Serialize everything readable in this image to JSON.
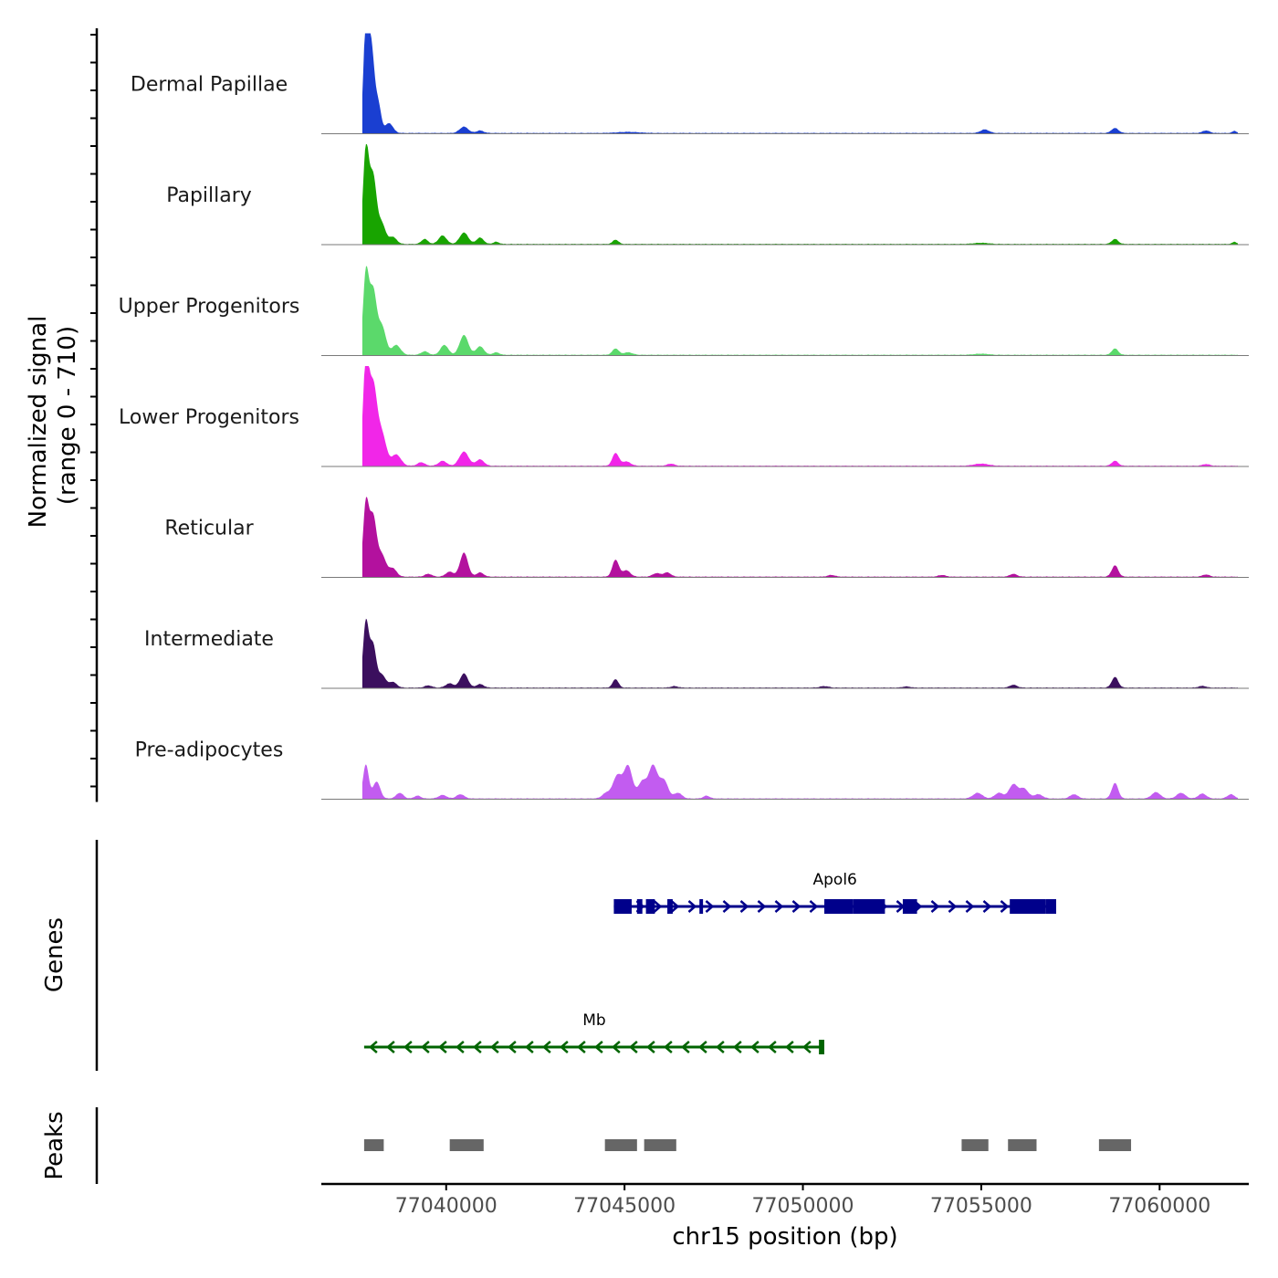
{
  "chart_data": {
    "type": "area",
    "title": "",
    "region": {
      "chrom": "chr15",
      "start": 77036500,
      "end": 77062500
    },
    "xlabel": "chr15 position (bp)",
    "ylabel": "Normalized signal",
    "ylabel_range": "(range 0 - 710)",
    "ylim": [
      0,
      710
    ],
    "x_ticks": [
      77040000,
      77045000,
      77050000,
      77055000,
      77060000
    ],
    "x_tick_labels": [
      "77040000",
      "77045000",
      "77050000",
      "77055000",
      "77060000"
    ],
    "series": [
      {
        "name": "Dermal Papillae",
        "color": "#1a3fd1",
        "peaks": [
          [
            77037750,
            710,
            70
          ],
          [
            77037900,
            600,
            90
          ],
          [
            77038100,
            190,
            80
          ],
          [
            77038400,
            70,
            110
          ],
          [
            77040500,
            45,
            120
          ],
          [
            77040950,
            18,
            100
          ],
          [
            77045100,
            8,
            300
          ],
          [
            77055100,
            25,
            120
          ],
          [
            77058750,
            35,
            100
          ],
          [
            77061300,
            18,
            100
          ],
          [
            77062100,
            15,
            60
          ]
        ]
      },
      {
        "name": "Papillary",
        "color": "#18a400",
        "peaks": [
          [
            77037750,
            650,
            80
          ],
          [
            77037950,
            480,
            100
          ],
          [
            77038200,
            140,
            100
          ],
          [
            77038500,
            50,
            110
          ],
          [
            77039400,
            35,
            90
          ],
          [
            77039900,
            60,
            110
          ],
          [
            77040500,
            80,
            120
          ],
          [
            77040950,
            45,
            100
          ],
          [
            77041400,
            15,
            80
          ],
          [
            77044750,
            30,
            80
          ],
          [
            77055000,
            8,
            200
          ],
          [
            77058750,
            35,
            90
          ],
          [
            77062100,
            15,
            60
          ]
        ]
      },
      {
        "name": "Upper Progenitors",
        "color": "#5bd96b",
        "peaks": [
          [
            77037750,
            560,
            80
          ],
          [
            77037950,
            450,
            100
          ],
          [
            77038200,
            200,
            110
          ],
          [
            77038600,
            70,
            120
          ],
          [
            77039400,
            25,
            100
          ],
          [
            77039950,
            70,
            110
          ],
          [
            77040500,
            140,
            120
          ],
          [
            77040950,
            60,
            110
          ],
          [
            77041400,
            18,
            90
          ],
          [
            77044750,
            45,
            90
          ],
          [
            77045100,
            18,
            120
          ],
          [
            77055000,
            8,
            200
          ],
          [
            77058750,
            45,
            90
          ]
        ]
      },
      {
        "name": "Lower Progenitors",
        "color": "#f126e8",
        "peaks": [
          [
            77037750,
            710,
            80
          ],
          [
            77037950,
            560,
            110
          ],
          [
            77038200,
            220,
            120
          ],
          [
            77038600,
            80,
            130
          ],
          [
            77039300,
            25,
            100
          ],
          [
            77039900,
            35,
            110
          ],
          [
            77040500,
            100,
            130
          ],
          [
            77040950,
            45,
            110
          ],
          [
            77044750,
            90,
            90
          ],
          [
            77045050,
            30,
            120
          ],
          [
            77046300,
            15,
            100
          ],
          [
            77055000,
            15,
            200
          ],
          [
            77058750,
            35,
            90
          ],
          [
            77061300,
            12,
            100
          ]
        ]
      },
      {
        "name": "Reticular",
        "color": "#b3119e",
        "peaks": [
          [
            77037750,
            500,
            80
          ],
          [
            77037950,
            420,
            100
          ],
          [
            77038200,
            150,
            110
          ],
          [
            77038500,
            60,
            110
          ],
          [
            77039500,
            20,
            100
          ],
          [
            77040100,
            35,
            110
          ],
          [
            77040500,
            170,
            110
          ],
          [
            77040950,
            30,
            100
          ],
          [
            77044750,
            120,
            90
          ],
          [
            77045050,
            45,
            110
          ],
          [
            77045900,
            25,
            110
          ],
          [
            77046200,
            30,
            100
          ],
          [
            77050800,
            12,
            100
          ],
          [
            77053900,
            12,
            100
          ],
          [
            77055900,
            20,
            100
          ],
          [
            77058750,
            80,
            90
          ],
          [
            77061300,
            15,
            100
          ]
        ]
      },
      {
        "name": "Intermediate",
        "color": "#3b0f5e",
        "peaks": [
          [
            77037750,
            460,
            80
          ],
          [
            77037950,
            300,
            90
          ],
          [
            77038200,
            90,
            100
          ],
          [
            77038500,
            40,
            110
          ],
          [
            77039500,
            15,
            100
          ],
          [
            77040100,
            30,
            110
          ],
          [
            77040500,
            100,
            110
          ],
          [
            77040950,
            25,
            100
          ],
          [
            77044750,
            60,
            80
          ],
          [
            77046400,
            10,
            100
          ],
          [
            77050600,
            10,
            120
          ],
          [
            77052900,
            8,
            100
          ],
          [
            77055900,
            20,
            100
          ],
          [
            77058750,
            75,
            90
          ],
          [
            77061200,
            12,
            100
          ]
        ]
      },
      {
        "name": "Pre-adipocytes",
        "color": "#c25cf0",
        "peaks": [
          [
            77037750,
            240,
            80
          ],
          [
            77038050,
            120,
            100
          ],
          [
            77038700,
            40,
            100
          ],
          [
            77039200,
            20,
            90
          ],
          [
            77039900,
            25,
            110
          ],
          [
            77040400,
            30,
            110
          ],
          [
            77044500,
            40,
            120
          ],
          [
            77044800,
            160,
            120
          ],
          [
            77045100,
            230,
            120
          ],
          [
            77045500,
            120,
            120
          ],
          [
            77045800,
            230,
            120
          ],
          [
            77046100,
            130,
            120
          ],
          [
            77046500,
            40,
            110
          ],
          [
            77047300,
            20,
            90
          ],
          [
            77054900,
            40,
            130
          ],
          [
            77055500,
            40,
            120
          ],
          [
            77055900,
            100,
            120
          ],
          [
            77056200,
            70,
            120
          ],
          [
            77056600,
            30,
            120
          ],
          [
            77057600,
            30,
            110
          ],
          [
            77058750,
            110,
            90
          ],
          [
            77059900,
            45,
            120
          ],
          [
            77060600,
            40,
            120
          ],
          [
            77061200,
            35,
            110
          ],
          [
            77062000,
            30,
            100
          ]
        ]
      }
    ],
    "genes": [
      {
        "name": "Apol6",
        "strand": "+",
        "start": 77044700,
        "end": 77057100,
        "color": "#00008b",
        "exons": [
          [
            77044700,
            77045200
          ],
          [
            77045350,
            77045500
          ],
          [
            77045600,
            77045850
          ],
          [
            77046200,
            77046350
          ],
          [
            77047100,
            77047200
          ],
          [
            77050600,
            77051400
          ],
          [
            77051400,
            77052300
          ],
          [
            77052800,
            77053200
          ],
          [
            77055800,
            77056800
          ],
          [
            77056800,
            77057100
          ]
        ]
      },
      {
        "name": "Mb",
        "strand": "-",
        "start": 77037700,
        "end": 77050600,
        "color": "#006400",
        "exons": [
          [
            77050450,
            77050600
          ]
        ]
      }
    ],
    "peaks_track": [
      [
        77037700,
        77038250
      ],
      [
        77040100,
        77041050
      ],
      [
        77044450,
        77045350
      ],
      [
        77045550,
        77046450
      ],
      [
        77054450,
        77055200
      ],
      [
        77055750,
        77056550
      ],
      [
        77058300,
        77059200
      ]
    ],
    "panel_titles": {
      "genes": "Genes",
      "peaks": "Peaks"
    }
  }
}
